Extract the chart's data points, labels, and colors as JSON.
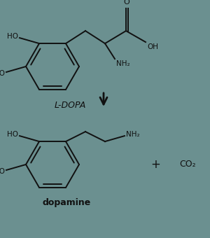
{
  "bg_color": "#6b9090",
  "line_color": "#111111",
  "text_color": "#111111",
  "label_ldopa": "L-DOPA",
  "label_dopamine": "dopamine",
  "label_co2": "CO₂",
  "label_plus": "+",
  "figsize": [
    3.0,
    3.4
  ],
  "dpi": 100
}
